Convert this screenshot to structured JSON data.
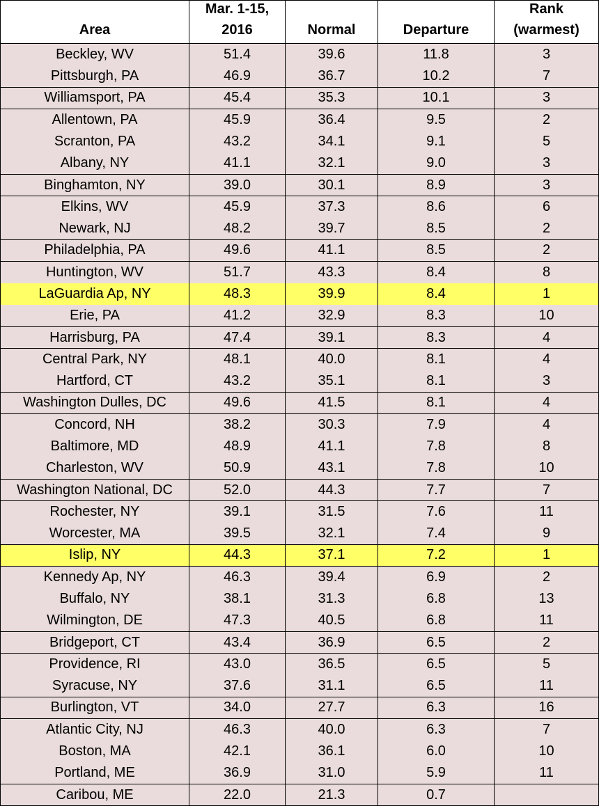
{
  "table": {
    "columns": [
      [
        "Area"
      ],
      [
        "Mar. 1-15,",
        "2016"
      ],
      [
        "Normal"
      ],
      [
        "Departure"
      ],
      [
        "Rank",
        "(warmest)"
      ]
    ],
    "rows": [
      {
        "cells": [
          "Beckley, WV",
          "51.4",
          "39.6",
          "11.8",
          "3"
        ]
      },
      {
        "cells": [
          "Pittsburgh, PA",
          "46.9",
          "36.7",
          "10.2",
          "7"
        ]
      },
      {
        "cells": [
          "Williamsport, PA",
          "45.4",
          "35.3",
          "10.1",
          "3"
        ]
      },
      {
        "cells": [
          "Allentown, PA",
          "45.9",
          "36.4",
          "9.5",
          "2"
        ]
      },
      {
        "cells": [
          "Scranton, PA",
          "43.2",
          "34.1",
          "9.1",
          "5"
        ]
      },
      {
        "cells": [
          "Albany, NY",
          "41.1",
          "32.1",
          "9.0",
          "3"
        ]
      },
      {
        "cells": [
          "Binghamton, NY",
          "39.0",
          "30.1",
          "8.9",
          "3"
        ]
      },
      {
        "cells": [
          "Elkins, WV",
          "45.9",
          "37.3",
          "8.6",
          "6"
        ]
      },
      {
        "cells": [
          "Newark, NJ",
          "48.2",
          "39.7",
          "8.5",
          "2"
        ]
      },
      {
        "cells": [
          "Philadelphia, PA",
          "49.6",
          "41.1",
          "8.5",
          "2"
        ]
      },
      {
        "cells": [
          "Huntington, WV",
          "51.7",
          "43.3",
          "8.4",
          "8"
        ]
      },
      {
        "cells": [
          "LaGuardia Ap, NY",
          "48.3",
          "39.9",
          "8.4",
          "1"
        ],
        "highlight": true
      },
      {
        "cells": [
          "Erie, PA",
          "41.2",
          "32.9",
          "8.3",
          "10"
        ]
      },
      {
        "cells": [
          "Harrisburg, PA",
          "47.4",
          "39.1",
          "8.3",
          "4"
        ]
      },
      {
        "cells": [
          "Central Park, NY",
          "48.1",
          "40.0",
          "8.1",
          "4"
        ]
      },
      {
        "cells": [
          "Hartford, CT",
          "43.2",
          "35.1",
          "8.1",
          "3"
        ]
      },
      {
        "cells": [
          "Washington Dulles, DC",
          "49.6",
          "41.5",
          "8.1",
          "4"
        ]
      },
      {
        "cells": [
          "Concord, NH",
          "38.2",
          "30.3",
          "7.9",
          "4"
        ]
      },
      {
        "cells": [
          "Baltimore, MD",
          "48.9",
          "41.1",
          "7.8",
          "8"
        ]
      },
      {
        "cells": [
          "Charleston, WV",
          "50.9",
          "43.1",
          "7.8",
          "10"
        ]
      },
      {
        "cells": [
          "Washington National, DC",
          "52.0",
          "44.3",
          "7.7",
          "7"
        ]
      },
      {
        "cells": [
          "Rochester, NY",
          "39.1",
          "31.5",
          "7.6",
          "11"
        ]
      },
      {
        "cells": [
          "Worcester, MA",
          "39.5",
          "32.1",
          "7.4",
          "9"
        ]
      },
      {
        "cells": [
          "Islip, NY",
          "44.3",
          "37.1",
          "7.2",
          "1"
        ],
        "highlight": true
      },
      {
        "cells": [
          "Kennedy Ap, NY",
          "46.3",
          "39.4",
          "6.9",
          "2"
        ]
      },
      {
        "cells": [
          "Buffalo, NY",
          "38.1",
          "31.3",
          "6.8",
          "13"
        ]
      },
      {
        "cells": [
          "Wilmington, DE",
          "47.3",
          "40.5",
          "6.8",
          "11"
        ]
      },
      {
        "cells": [
          "Bridgeport, CT",
          "43.4",
          "36.9",
          "6.5",
          "2"
        ]
      },
      {
        "cells": [
          "Providence, RI",
          "43.0",
          "36.5",
          "6.5",
          "5"
        ]
      },
      {
        "cells": [
          "Syracuse, NY",
          "37.6",
          "31.1",
          "6.5",
          "11"
        ]
      },
      {
        "cells": [
          "Burlington, VT",
          "34.0",
          "27.7",
          "6.3",
          "16"
        ]
      },
      {
        "cells": [
          "Atlantic City, NJ",
          "46.3",
          "40.0",
          "6.3",
          "7"
        ]
      },
      {
        "cells": [
          "Boston, MA",
          "42.1",
          "36.1",
          "6.0",
          "10"
        ]
      },
      {
        "cells": [
          "Portland, ME",
          "36.9",
          "31.0",
          "5.9",
          "11"
        ]
      },
      {
        "cells": [
          "Caribou, ME",
          "22.0",
          "21.3",
          "0.7"
        ]
      }
    ]
  }
}
